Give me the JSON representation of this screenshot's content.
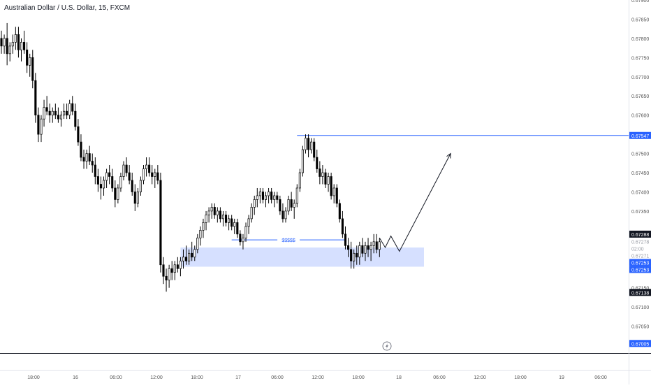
{
  "symbol": {
    "title": "Australian Dollar / U.S. Dollar, 15, FXCM"
  },
  "colors": {
    "candle": "#000000",
    "resistance_line": "#2962ff",
    "zone_fill": "#d6e0ff",
    "level_blue": "#2962ff",
    "level_gray": "#9598a1",
    "level_dark": "#131722",
    "axis_text": "#555555"
  },
  "chart_data": {
    "type": "candlestick",
    "ylim": [
      0.6698,
      0.679
    ],
    "y_ticks": [
      "0.67900",
      "0.67850",
      "0.67800",
      "0.67750",
      "0.67700",
      "0.67650",
      "0.67600",
      "0.67500",
      "0.67450",
      "0.67400",
      "0.67350",
      "0.67150",
      "0.67100",
      "0.67050"
    ],
    "x_ticks": [
      "18:00",
      "16",
      "06:00",
      "12:00",
      "18:00",
      "17",
      "06:00",
      "12:00",
      "18:00",
      "18",
      "06:00",
      "12:00",
      "18:00",
      "19",
      "06:00"
    ],
    "candles": [
      [
        0.678,
        0.6782,
        0.6776,
        0.6778
      ],
      [
        0.6778,
        0.6781,
        0.6776,
        0.678
      ],
      [
        0.678,
        0.6784,
        0.6773,
        0.6776
      ],
      [
        0.6776,
        0.6779,
        0.6774,
        0.6778
      ],
      [
        0.6778,
        0.6781,
        0.6776,
        0.6779
      ],
      [
        0.6779,
        0.6783,
        0.6777,
        0.6781
      ],
      [
        0.6781,
        0.6783,
        0.6775,
        0.6777
      ],
      [
        0.6777,
        0.678,
        0.6774,
        0.6779
      ],
      [
        0.6779,
        0.6782,
        0.6776,
        0.6777
      ],
      [
        0.6777,
        0.6779,
        0.6771,
        0.6773
      ],
      [
        0.6773,
        0.6776,
        0.677,
        0.6775
      ],
      [
        0.6775,
        0.6777,
        0.6767,
        0.6769
      ],
      [
        0.6769,
        0.6771,
        0.6758,
        0.676
      ],
      [
        0.676,
        0.6762,
        0.6753,
        0.6755
      ],
      [
        0.6755,
        0.676,
        0.6753,
        0.6759
      ],
      [
        0.6759,
        0.6764,
        0.6757,
        0.6762
      ],
      [
        0.6762,
        0.6765,
        0.676,
        0.6761
      ],
      [
        0.6761,
        0.6763,
        0.6758,
        0.676
      ],
      [
        0.676,
        0.6762,
        0.6758,
        0.6761
      ],
      [
        0.6761,
        0.6763,
        0.6759,
        0.676
      ],
      [
        0.676,
        0.6762,
        0.6758,
        0.6759
      ],
      [
        0.6759,
        0.6761,
        0.6757,
        0.676
      ],
      [
        0.676,
        0.6763,
        0.6759,
        0.6761
      ],
      [
        0.6761,
        0.6763,
        0.6759,
        0.676
      ],
      [
        0.676,
        0.6764,
        0.6759,
        0.6763
      ],
      [
        0.6763,
        0.6765,
        0.676,
        0.6761
      ],
      [
        0.6761,
        0.6763,
        0.6756,
        0.6757
      ],
      [
        0.6757,
        0.6759,
        0.6752,
        0.6753
      ],
      [
        0.6753,
        0.6755,
        0.6748,
        0.6749
      ],
      [
        0.6749,
        0.6751,
        0.6746,
        0.6748
      ],
      [
        0.6748,
        0.6751,
        0.6746,
        0.675
      ],
      [
        0.675,
        0.6752,
        0.6747,
        0.6748
      ],
      [
        0.6748,
        0.675,
        0.6745,
        0.6747
      ],
      [
        0.6747,
        0.6749,
        0.6742,
        0.6744
      ],
      [
        0.6744,
        0.6746,
        0.674,
        0.6742
      ],
      [
        0.6742,
        0.6744,
        0.6738,
        0.6741
      ],
      [
        0.6741,
        0.6744,
        0.6739,
        0.6743
      ],
      [
        0.6743,
        0.6746,
        0.6741,
        0.6745
      ],
      [
        0.6745,
        0.6747,
        0.6742,
        0.6744
      ],
      [
        0.6744,
        0.6746,
        0.674,
        0.6741
      ],
      [
        0.6741,
        0.6743,
        0.6736,
        0.6738
      ],
      [
        0.6738,
        0.6742,
        0.6737,
        0.6741
      ],
      [
        0.6741,
        0.6745,
        0.674,
        0.6744
      ],
      [
        0.6744,
        0.6748,
        0.6743,
        0.6747
      ],
      [
        0.6747,
        0.6749,
        0.6744,
        0.6745
      ],
      [
        0.6745,
        0.6747,
        0.6742,
        0.6743
      ],
      [
        0.6743,
        0.6745,
        0.6739,
        0.674
      ],
      [
        0.674,
        0.6742,
        0.6735,
        0.6737
      ],
      [
        0.6737,
        0.6741,
        0.6736,
        0.674
      ],
      [
        0.674,
        0.6744,
        0.6739,
        0.6743
      ],
      [
        0.6743,
        0.6747,
        0.6742,
        0.6746
      ],
      [
        0.6746,
        0.6749,
        0.6744,
        0.6747
      ],
      [
        0.6747,
        0.6749,
        0.6744,
        0.6745
      ],
      [
        0.6745,
        0.6747,
        0.6742,
        0.6744
      ],
      [
        0.6744,
        0.6746,
        0.6741,
        0.6745
      ],
      [
        0.6745,
        0.6747,
        0.6742,
        0.6743
      ],
      [
        0.6743,
        0.6745,
        0.6719,
        0.6721
      ],
      [
        0.6721,
        0.6723,
        0.6716,
        0.6718
      ],
      [
        0.6718,
        0.672,
        0.6714,
        0.6717
      ],
      [
        0.6717,
        0.6721,
        0.6715,
        0.672
      ],
      [
        0.672,
        0.6722,
        0.6717,
        0.6719
      ],
      [
        0.6719,
        0.6722,
        0.6717,
        0.6721
      ],
      [
        0.6721,
        0.6723,
        0.6719,
        0.672
      ],
      [
        0.672,
        0.6723,
        0.6718,
        0.6722
      ],
      [
        0.6722,
        0.6725,
        0.672,
        0.6723
      ],
      [
        0.6723,
        0.6726,
        0.6721,
        0.6722
      ],
      [
        0.6722,
        0.6725,
        0.6721,
        0.6724
      ],
      [
        0.6724,
        0.6727,
        0.6722,
        0.6723
      ],
      [
        0.6723,
        0.6726,
        0.6722,
        0.6725
      ],
      [
        0.6725,
        0.6729,
        0.6724,
        0.6728
      ],
      [
        0.6728,
        0.6731,
        0.6726,
        0.673
      ],
      [
        0.673,
        0.6733,
        0.6728,
        0.6732
      ],
      [
        0.6732,
        0.6735,
        0.673,
        0.6734
      ],
      [
        0.6734,
        0.6736,
        0.6732,
        0.6735
      ],
      [
        0.6735,
        0.6737,
        0.6733,
        0.6736
      ],
      [
        0.6736,
        0.6737,
        0.6733,
        0.6734
      ],
      [
        0.6734,
        0.6736,
        0.6732,
        0.6735
      ],
      [
        0.6735,
        0.6736,
        0.6732,
        0.6733
      ],
      [
        0.6733,
        0.6735,
        0.6731,
        0.6734
      ],
      [
        0.6734,
        0.6735,
        0.6731,
        0.6732
      ],
      [
        0.6732,
        0.6734,
        0.673,
        0.6733
      ],
      [
        0.6733,
        0.6734,
        0.673,
        0.6731
      ],
      [
        0.6731,
        0.6733,
        0.6729,
        0.6732
      ],
      [
        0.6732,
        0.6733,
        0.6728,
        0.6729
      ],
      [
        0.6729,
        0.673,
        0.6726,
        0.6727
      ],
      [
        0.6727,
        0.6729,
        0.6725,
        0.6728
      ],
      [
        0.6728,
        0.6732,
        0.6727,
        0.6731
      ],
      [
        0.6731,
        0.6734,
        0.6729,
        0.6733
      ],
      [
        0.6733,
        0.6737,
        0.6732,
        0.6736
      ],
      [
        0.6736,
        0.6739,
        0.6734,
        0.6738
      ],
      [
        0.6738,
        0.6741,
        0.6736,
        0.6739
      ],
      [
        0.6739,
        0.6741,
        0.6737,
        0.674
      ],
      [
        0.674,
        0.6741,
        0.6737,
        0.6738
      ],
      [
        0.6738,
        0.674,
        0.6736,
        0.6739
      ],
      [
        0.6739,
        0.6741,
        0.6737,
        0.674
      ],
      [
        0.674,
        0.6741,
        0.6737,
        0.6738
      ],
      [
        0.6738,
        0.674,
        0.6736,
        0.6739
      ],
      [
        0.6739,
        0.674,
        0.6737,
        0.6738
      ],
      [
        0.6738,
        0.6739,
        0.6734,
        0.6735
      ],
      [
        0.6735,
        0.6737,
        0.6732,
        0.6733
      ],
      [
        0.6733,
        0.6736,
        0.6732,
        0.6735
      ],
      [
        0.6735,
        0.6739,
        0.6734,
        0.6738
      ],
      [
        0.6738,
        0.674,
        0.6735,
        0.6736
      ],
      [
        0.6736,
        0.6738,
        0.6733,
        0.6737
      ],
      [
        0.6737,
        0.6742,
        0.6736,
        0.6741
      ],
      [
        0.6741,
        0.6746,
        0.674,
        0.6745
      ],
      [
        0.6745,
        0.6752,
        0.6744,
        0.6751
      ],
      [
        0.6751,
        0.6755,
        0.675,
        0.6754
      ],
      [
        0.6754,
        0.6755,
        0.6749,
        0.6751
      ],
      [
        0.6751,
        0.6754,
        0.675,
        0.6753
      ],
      [
        0.6753,
        0.6754,
        0.6748,
        0.6749
      ],
      [
        0.6749,
        0.6751,
        0.6745,
        0.6746
      ],
      [
        0.6746,
        0.6748,
        0.6742,
        0.6744
      ],
      [
        0.6744,
        0.6747,
        0.6742,
        0.6745
      ],
      [
        0.6745,
        0.6746,
        0.6741,
        0.6742
      ],
      [
        0.6742,
        0.6745,
        0.674,
        0.6744
      ],
      [
        0.6744,
        0.6745,
        0.6738,
        0.6739
      ],
      [
        0.6739,
        0.6742,
        0.6737,
        0.6741
      ],
      [
        0.6741,
        0.6742,
        0.6736,
        0.6737
      ],
      [
        0.6737,
        0.6738,
        0.6732,
        0.6733
      ],
      [
        0.6733,
        0.6735,
        0.6728,
        0.6729
      ],
      [
        0.6729,
        0.6731,
        0.6725,
        0.6726
      ],
      [
        0.6726,
        0.6728,
        0.6723,
        0.6725
      ],
      [
        0.6725,
        0.6727,
        0.672,
        0.6722
      ],
      [
        0.6722,
        0.6725,
        0.672,
        0.6724
      ],
      [
        0.6724,
        0.6726,
        0.6721,
        0.6723
      ],
      [
        0.6723,
        0.6727,
        0.6721,
        0.6726
      ],
      [
        0.6726,
        0.6728,
        0.6723,
        0.6724
      ],
      [
        0.6724,
        0.6727,
        0.6722,
        0.6726
      ],
      [
        0.6726,
        0.6728,
        0.6723,
        0.6725
      ],
      [
        0.6725,
        0.6727,
        0.6722,
        0.6726
      ],
      [
        0.6726,
        0.6729,
        0.6724,
        0.6727
      ],
      [
        0.6727,
        0.6729,
        0.6724,
        0.6725
      ],
      [
        0.6725,
        0.6728,
        0.6723,
        0.6727
      ]
    ],
    "price_levels": [
      {
        "value": 0.67547,
        "label": "0.67547",
        "style": "blue"
      },
      {
        "value": 0.67288,
        "label": "0.67288",
        "style": "dark"
      },
      {
        "value": 0.67278,
        "label": "0.67278",
        "style": "gray"
      },
      {
        "value": 0.67264,
        "label": "02:00",
        "style": "gray"
      },
      {
        "value": 0.67271,
        "label": "0.67271",
        "style": "gray"
      },
      {
        "value": 0.67253,
        "label": "0.67253",
        "style": "blue"
      },
      {
        "value": 0.67253,
        "label": "0.67253",
        "style": "blue"
      },
      {
        "value": 0.67138,
        "label": "0.67138",
        "style": "dark"
      },
      {
        "value": 0.67005,
        "label": "0.67005",
        "style": "blue"
      }
    ],
    "resistance": {
      "value": 0.67547
    },
    "liquidity_line": {
      "value": 0.67275,
      "label": "$$$$$"
    },
    "demand_zone": {
      "top": 0.67255,
      "bottom": 0.67205
    },
    "projection": [
      {
        "bar": 133,
        "price": 0.6728
      },
      {
        "bar": 135,
        "price": 0.67255
      },
      {
        "bar": 137,
        "price": 0.67285
      },
      {
        "bar": 140,
        "price": 0.67245
      },
      {
        "bar": 158,
        "price": 0.675
      }
    ]
  }
}
